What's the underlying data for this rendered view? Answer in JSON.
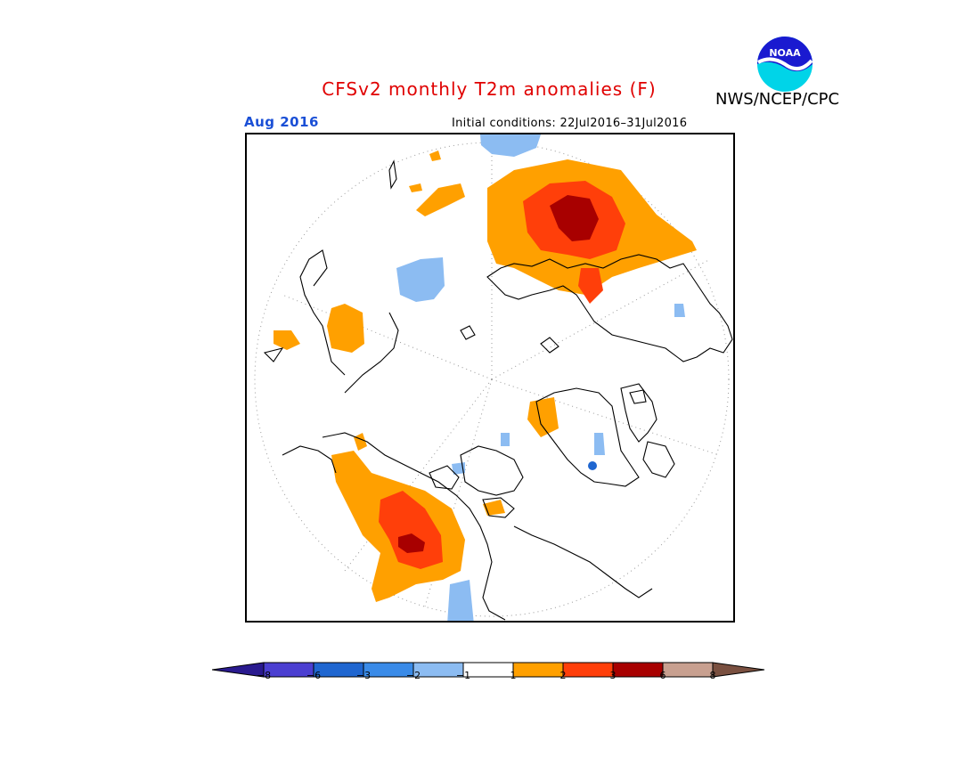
{
  "title": "CFSv2 monthly T2m anomalies (F)",
  "agency": "NWS/NCEP/CPC",
  "logo_text": "NOAA",
  "valid_month": "Aug 2016",
  "initial_conditions": "Initial conditions: 22Jul2016–31Jul2016",
  "legend": {
    "colors": [
      "#2a1a8f",
      "#4b3fd1",
      "#1f66d0",
      "#3a8be8",
      "#8cbcf2",
      "#ffffff",
      "#ffa000",
      "#ff3f0a",
      "#a80000",
      "#c8a090",
      "#7a5040"
    ],
    "labels": [
      "−8",
      "−6",
      "−3",
      "−2",
      "−1",
      "1",
      "2",
      "3",
      "6",
      "8"
    ]
  }
}
